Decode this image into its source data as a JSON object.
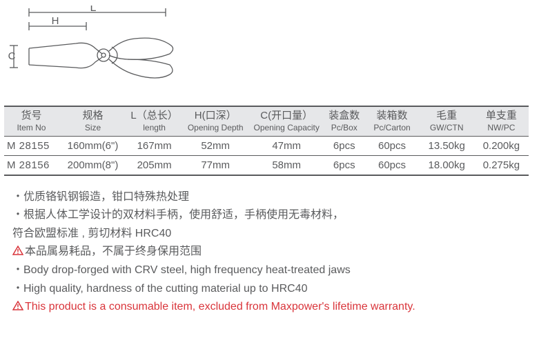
{
  "diagram": {
    "labels": {
      "L": "L",
      "H": "H",
      "C": "C"
    },
    "stroke": "#595a5c"
  },
  "table": {
    "headers": [
      {
        "cn": "货号",
        "en": "Item No"
      },
      {
        "cn": "规格",
        "en": "Size"
      },
      {
        "cn": "L（总长）",
        "en": "length"
      },
      {
        "cn": "H(口深）",
        "en": "Opening Depth"
      },
      {
        "cn": "C(开口量）",
        "en": "Opening Capacity"
      },
      {
        "cn": "装盒数",
        "en": "Pc/Box"
      },
      {
        "cn": "装箱数",
        "en": "Pc/Carton"
      },
      {
        "cn": "毛重",
        "en": "GW/CTN"
      },
      {
        "cn": "单支重",
        "en": "NW/PC"
      }
    ],
    "rows": [
      {
        "itemno": "M 28155",
        "size": "160mm(6\")",
        "L": "167mm",
        "H": "52mm",
        "C": "47mm",
        "pcbox": "6pcs",
        "pccarton": "60pcs",
        "gw": "13.50kg",
        "nw": "0.200kg"
      },
      {
        "itemno": "M 28156",
        "size": "200mm(8\")",
        "L": "205mm",
        "H": "77mm",
        "C": "58mm",
        "pcbox": "6pcs",
        "pccarton": "60pcs",
        "gw": "18.00kg",
        "nw": "0.275kg"
      }
    ],
    "col_widths": [
      "80",
      "100",
      "80",
      "100",
      "110",
      "60",
      "80",
      "80",
      "80"
    ]
  },
  "notes": {
    "lines": [
      {
        "text": "・优质铬钒钢锻造，钳口特殊热处理",
        "warn": false,
        "red": false
      },
      {
        "text": "・根据人体工学设计的双材料手柄，使用舒适，手柄使用无毒材料，",
        "warn": false,
        "red": false
      },
      {
        "text": "符合欧盟标准 , 剪切材料 HRC40",
        "warn": false,
        "red": false
      },
      {
        "text": "本品属易耗品，不属于终身保用范围",
        "warn": true,
        "red": false
      },
      {
        "text": "・Body drop-forged with CRV steel, high frequency heat-treated jaws",
        "warn": false,
        "red": false
      },
      {
        "text": "・High quality, hardness of the cutting material up to HRC40",
        "warn": false,
        "red": false
      },
      {
        "text": "This product is a consumable item, excluded from Maxpower's lifetime warranty.",
        "warn": true,
        "red": true
      }
    ],
    "warn_color": "#d9343a"
  }
}
